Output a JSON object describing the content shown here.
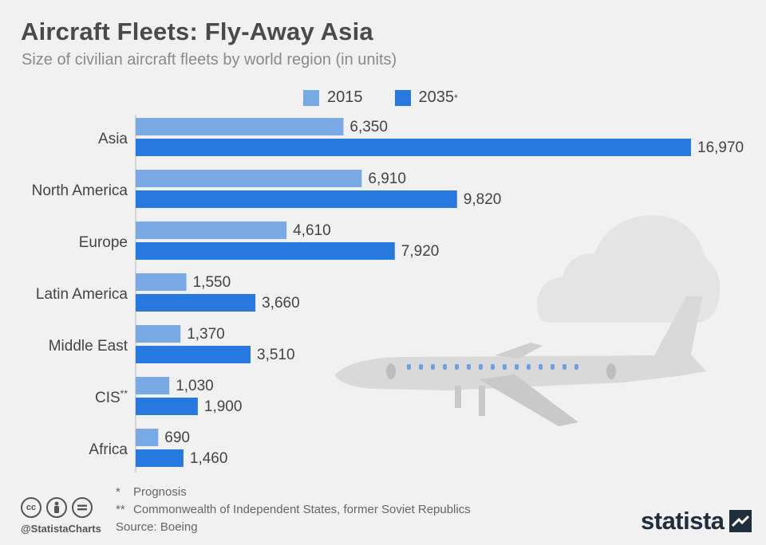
{
  "header": {
    "title": "Aircraft Fleets: Fly-Away Asia",
    "subtitle": "Size of civilian aircraft fleets by world region (in units)"
  },
  "legend": {
    "series_2015": "2015",
    "series_2035": "2035",
    "series_2035_mark": "*"
  },
  "colors": {
    "series_2015": "#7aaae6",
    "series_2035": "#2779e0",
    "illustration": "#d8d8d8"
  },
  "chart_data": {
    "type": "bar",
    "orientation": "horizontal",
    "title": "Aircraft Fleets: Fly-Away Asia",
    "subtitle": "Size of civilian aircraft fleets by world region (in units)",
    "categories": [
      "Asia",
      "North America",
      "Europe",
      "Latin America",
      "Middle East",
      "CIS",
      "Africa"
    ],
    "category_marks": [
      "",
      "",
      "",
      "",
      "",
      "**",
      ""
    ],
    "series": [
      {
        "name": "2015",
        "values": [
          6350,
          6910,
          4610,
          1550,
          1370,
          1030,
          690
        ],
        "labels": [
          "6,350",
          "6,910",
          "4,610",
          "1,550",
          "1,370",
          "1,030",
          "690"
        ]
      },
      {
        "name": "2035*",
        "values": [
          16970,
          9820,
          7920,
          3660,
          3510,
          1900,
          1460
        ],
        "labels": [
          "16,970",
          "9,820",
          "7,920",
          "3,660",
          "3,510",
          "1,900",
          "1,460"
        ]
      }
    ],
    "xlim": [
      0,
      16970
    ],
    "grid": false,
    "legend_position": "top"
  },
  "footnotes": {
    "note1_mark": "*",
    "note1": "Prognosis",
    "note2_mark": "**",
    "note2": "Commonwealth of Independent States, former Soviet Republics",
    "source": "Source: Boeing"
  },
  "branding": {
    "license_icons": [
      "cc-icon",
      "attribution-icon",
      "no-derivatives-icon"
    ],
    "cc_label": "cc",
    "handle": "@StatistaCharts",
    "logo_text": "statista"
  }
}
